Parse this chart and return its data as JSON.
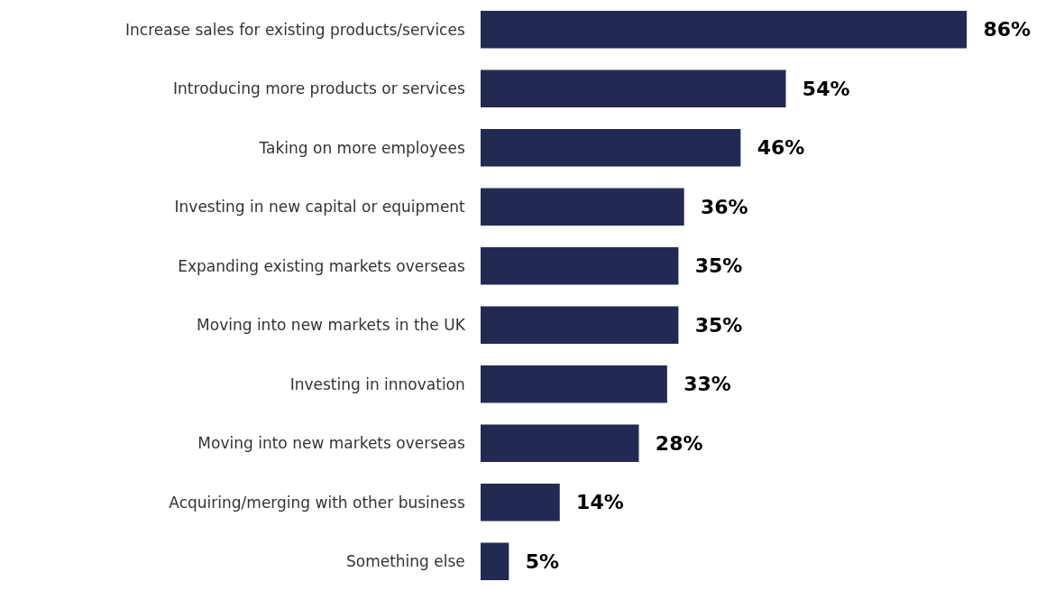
{
  "chart_data": {
    "type": "bar",
    "orientation": "horizontal",
    "categories": [
      "Increase sales for existing products/services",
      "Introducing more products or services",
      "Taking on more employees",
      "Investing in new capital or equipment",
      "Expanding existing markets overseas",
      "Moving into new markets in the UK",
      "Investing in innovation",
      "Moving into new markets overseas",
      "Acquiring/merging with other business",
      "Something else"
    ],
    "values": [
      86,
      54,
      46,
      36,
      35,
      35,
      33,
      28,
      14,
      5
    ],
    "value_labels": [
      "86%",
      "54%",
      "46%",
      "36%",
      "35%",
      "35%",
      "33%",
      "28%",
      "14%",
      "5%"
    ],
    "color": "#222a54",
    "legend": false
  }
}
